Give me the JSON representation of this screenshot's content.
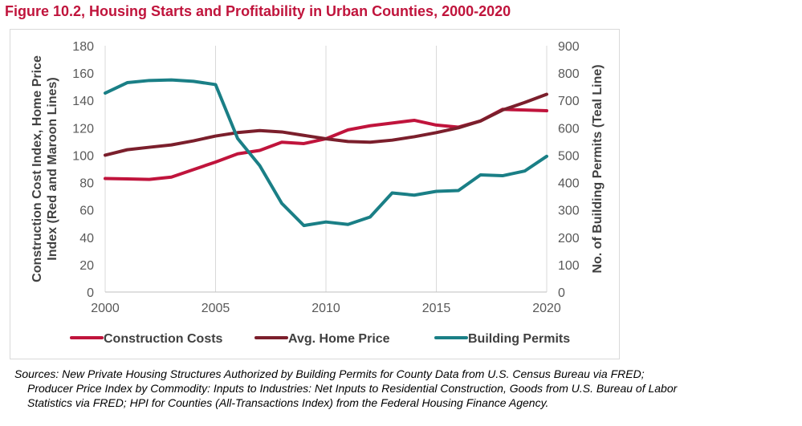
{
  "figure": {
    "title": "Figure 10.2, Housing Starts and Profitability in Urban Counties, 2000-2020",
    "title_color": "#c0143c"
  },
  "chart_data": {
    "type": "line",
    "title": "Figure 10.2, Housing Starts and Profitability in Urban Counties, 2000-2020",
    "x": [
      2000,
      2001,
      2002,
      2003,
      2004,
      2005,
      2006,
      2007,
      2008,
      2009,
      2010,
      2011,
      2012,
      2013,
      2014,
      2015,
      2016,
      2017,
      2018,
      2019,
      2020
    ],
    "x_ticks": [
      "2000",
      "2005",
      "2010",
      "2015",
      "2020"
    ],
    "x_tick_values": [
      2000,
      2005,
      2010,
      2015,
      2020
    ],
    "xlim": [
      2000,
      2020
    ],
    "y_left": {
      "label": "Construction Cost Index, Home Price Index (Red and Maroon Lines)",
      "ticks": [
        "0",
        "20",
        "40",
        "60",
        "80",
        "100",
        "120",
        "140",
        "160",
        "180"
      ],
      "tick_values": [
        0,
        20,
        40,
        60,
        80,
        100,
        120,
        140,
        160,
        180
      ],
      "lim": [
        0,
        180
      ]
    },
    "y_right": {
      "label": "No. of Building Permits (Teal Line)",
      "ticks": [
        "0",
        "100",
        "200",
        "300",
        "400",
        "500",
        "600",
        "700",
        "800",
        "900"
      ],
      "tick_values": [
        0,
        100,
        200,
        300,
        400,
        500,
        600,
        700,
        800,
        900
      ],
      "lim": [
        0,
        900
      ]
    },
    "grid": "vertical",
    "legend_position": "bottom",
    "series": [
      {
        "name": "Construction Costs",
        "axis": "left",
        "color": "#c0143c",
        "values": [
          83,
          82.7,
          82.3,
          84,
          89.5,
          95,
          101,
          103.5,
          109.5,
          108.5,
          112,
          118.5,
          121.5,
          123.5,
          125.5,
          122,
          120.5,
          125,
          133.5,
          133,
          132.5
        ]
      },
      {
        "name": "Avg. Home Price",
        "axis": "left",
        "color": "#7b1f2c",
        "values": [
          100,
          104,
          105.8,
          107.5,
          110.5,
          114,
          116.5,
          118,
          117,
          114.5,
          112,
          110,
          109.5,
          111,
          113.5,
          116.5,
          120,
          125,
          133,
          138.5,
          144.5
        ]
      },
      {
        "name": "Building Permits",
        "axis": "right",
        "color": "#1a7f86",
        "values": [
          727,
          765,
          773,
          775,
          770,
          758,
          561,
          462,
          324,
          243,
          256,
          247,
          274,
          362,
          354,
          368,
          371,
          428,
          425,
          442,
          496
        ]
      }
    ]
  },
  "sources": {
    "line1": "Sources: New Private Housing Structures Authorized by Building Permits for County Data from U.S. Census Bureau via FRED;",
    "line2": "Producer Price Index by Commodity: Inputs to Industries: Net Inputs to Residential Construction, Goods from U.S. Bureau of Labor",
    "line3": "Statistics via FRED; HPI for Counties (All-Transactions Index) from the Federal Housing Finance Agency."
  }
}
